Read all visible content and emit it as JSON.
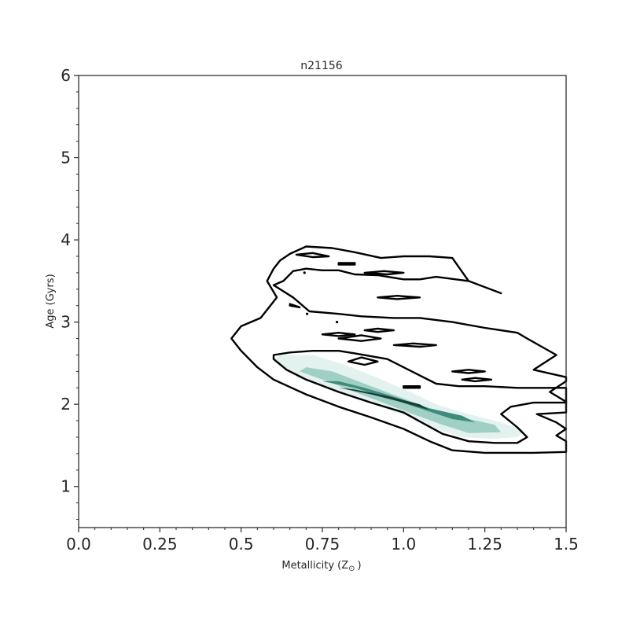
{
  "chart_data": {
    "type": "contour",
    "title": "n21156",
    "xlabel": "Metallicity (Z",
    "xlabel_sub": "⊙",
    "xlabel_close": ")",
    "ylabel": "Age (Gyrs)",
    "xlim": [
      0.0,
      1.5
    ],
    "ylim": [
      0.5,
      6.0
    ],
    "xticks": [
      0.0,
      0.25,
      0.5,
      0.75,
      1.0,
      1.25,
      1.5
    ],
    "xtick_labels": [
      "0.0",
      "0.25",
      "0.5",
      "0.75",
      "1.0",
      "1.25",
      "1.5"
    ],
    "yticks": [
      1,
      2,
      3,
      4,
      5,
      6
    ],
    "ytick_labels": [
      "1",
      "2",
      "3",
      "4",
      "5",
      "6"
    ],
    "colors": {
      "contour_line": "#000000",
      "fill_light": "#e3f1ef",
      "fill_mid": "#9fcfc5",
      "fill_dark": "#3e8a7c",
      "fill_core": "#173f37",
      "axis": "#262626"
    },
    "line_contours": [
      {
        "name": "outer-contour",
        "points": [
          [
            0.47,
            2.8
          ],
          [
            0.5,
            2.65
          ],
          [
            0.55,
            2.45
          ],
          [
            0.6,
            2.3
          ],
          [
            0.7,
            2.12
          ],
          [
            0.8,
            1.97
          ],
          [
            0.9,
            1.84
          ],
          [
            1.0,
            1.7
          ],
          [
            1.08,
            1.55
          ],
          [
            1.15,
            1.44
          ],
          [
            1.25,
            1.41
          ],
          [
            1.4,
            1.41
          ],
          [
            1.5,
            1.42
          ],
          [
            1.5,
            1.55
          ],
          [
            1.47,
            1.62
          ],
          [
            1.5,
            1.7
          ],
          [
            1.47,
            1.78
          ],
          [
            1.41,
            1.88
          ],
          [
            1.5,
            1.9
          ],
          [
            1.5,
            2.03
          ],
          [
            1.45,
            2.15
          ],
          [
            1.5,
            2.28
          ],
          [
            1.5,
            2.33
          ],
          [
            1.4,
            2.42
          ],
          [
            1.47,
            2.6
          ],
          [
            1.38,
            2.8
          ],
          [
            1.35,
            2.87
          ],
          [
            1.25,
            2.93
          ],
          [
            1.15,
            3.0
          ],
          [
            1.05,
            3.05
          ],
          [
            0.97,
            3.05
          ],
          [
            0.87,
            3.07
          ],
          [
            0.8,
            3.1
          ],
          [
            0.71,
            3.13
          ],
          [
            0.66,
            3.3
          ],
          [
            0.6,
            3.45
          ],
          [
            0.63,
            3.5
          ],
          [
            0.66,
            3.62
          ],
          [
            0.7,
            3.65
          ],
          [
            0.75,
            3.63
          ],
          [
            0.8,
            3.63
          ],
          [
            0.85,
            3.58
          ],
          [
            0.92,
            3.57
          ],
          [
            1.0,
            3.52
          ],
          [
            1.05,
            3.52
          ],
          [
            1.1,
            3.55
          ],
          [
            1.2,
            3.5
          ],
          [
            1.3,
            3.35
          ],
          [
            1.3,
            3.35
          ],
          [
            1.2,
            3.5
          ],
          [
            1.15,
            3.78
          ],
          [
            1.08,
            3.8
          ],
          [
            1.0,
            3.8
          ],
          [
            0.93,
            3.78
          ],
          [
            0.85,
            3.85
          ],
          [
            0.78,
            3.9
          ],
          [
            0.7,
            3.92
          ],
          [
            0.65,
            3.83
          ],
          [
            0.62,
            3.75
          ],
          [
            0.6,
            3.65
          ],
          [
            0.58,
            3.5
          ],
          [
            0.61,
            3.3
          ],
          [
            0.6,
            3.25
          ],
          [
            0.58,
            3.15
          ],
          [
            0.56,
            3.05
          ],
          [
            0.5,
            2.95
          ],
          [
            0.47,
            2.8
          ]
        ]
      },
      {
        "name": "inner-contour",
        "points": [
          [
            0.6,
            2.55
          ],
          [
            0.64,
            2.42
          ],
          [
            0.7,
            2.3
          ],
          [
            0.8,
            2.15
          ],
          [
            0.9,
            2.02
          ],
          [
            1.0,
            1.9
          ],
          [
            1.05,
            1.79
          ],
          [
            1.12,
            1.64
          ],
          [
            1.2,
            1.55
          ],
          [
            1.28,
            1.53
          ],
          [
            1.35,
            1.53
          ],
          [
            1.38,
            1.6
          ],
          [
            1.35,
            1.72
          ],
          [
            1.3,
            1.88
          ],
          [
            1.33,
            1.97
          ],
          [
            1.4,
            2.02
          ],
          [
            1.5,
            2.02
          ],
          [
            1.5,
            2.2
          ],
          [
            1.45,
            2.2
          ],
          [
            1.35,
            2.2
          ],
          [
            1.25,
            2.22
          ],
          [
            1.17,
            2.22
          ],
          [
            1.1,
            2.25
          ],
          [
            1.05,
            2.35
          ],
          [
            0.95,
            2.55
          ],
          [
            0.85,
            2.62
          ],
          [
            0.8,
            2.65
          ],
          [
            0.72,
            2.65
          ],
          [
            0.65,
            2.63
          ],
          [
            0.6,
            2.6
          ],
          [
            0.6,
            2.55
          ]
        ]
      },
      {
        "name": "island-1",
        "points": [
          [
            0.67,
            3.82
          ],
          [
            0.72,
            3.79
          ],
          [
            0.77,
            3.8
          ],
          [
            0.72,
            3.84
          ],
          [
            0.67,
            3.82
          ]
        ]
      },
      {
        "name": "island-2",
        "points": [
          [
            0.8,
            3.7
          ],
          [
            0.85,
            3.7
          ],
          [
            0.85,
            3.72
          ],
          [
            0.8,
            3.72
          ],
          [
            0.8,
            3.7
          ]
        ]
      },
      {
        "name": "island-3",
        "points": [
          [
            0.88,
            3.6
          ],
          [
            0.95,
            3.58
          ],
          [
            1.0,
            3.6
          ],
          [
            0.94,
            3.62
          ],
          [
            0.88,
            3.6
          ]
        ]
      },
      {
        "name": "island-4",
        "points": [
          [
            0.92,
            3.3
          ],
          [
            0.98,
            3.28
          ],
          [
            1.05,
            3.3
          ],
          [
            0.98,
            3.32
          ],
          [
            0.92,
            3.3
          ]
        ]
      },
      {
        "name": "island-5",
        "points": [
          [
            0.65,
            3.2
          ],
          [
            0.68,
            3.18
          ],
          [
            0.65,
            3.22
          ],
          [
            0.65,
            3.2
          ]
        ]
      },
      {
        "name": "island-6",
        "points": [
          [
            0.75,
            2.85
          ],
          [
            0.8,
            2.83
          ],
          [
            0.85,
            2.85
          ],
          [
            0.8,
            2.87
          ],
          [
            0.75,
            2.85
          ]
        ]
      },
      {
        "name": "island-7",
        "points": [
          [
            0.8,
            2.8
          ],
          [
            0.87,
            2.77
          ],
          [
            0.93,
            2.8
          ],
          [
            0.87,
            2.84
          ],
          [
            0.8,
            2.8
          ]
        ]
      },
      {
        "name": "island-8",
        "points": [
          [
            0.88,
            2.9
          ],
          [
            0.92,
            2.88
          ],
          [
            0.97,
            2.9
          ],
          [
            0.92,
            2.92
          ],
          [
            0.88,
            2.9
          ]
        ]
      },
      {
        "name": "island-9",
        "points": [
          [
            0.97,
            2.72
          ],
          [
            1.05,
            2.7
          ],
          [
            1.1,
            2.72
          ],
          [
            1.03,
            2.74
          ],
          [
            0.97,
            2.72
          ]
        ]
      },
      {
        "name": "island-10",
        "points": [
          [
            0.83,
            2.52
          ],
          [
            0.88,
            2.48
          ],
          [
            0.92,
            2.52
          ],
          [
            0.87,
            2.57
          ],
          [
            0.83,
            2.52
          ]
        ]
      },
      {
        "name": "island-11",
        "points": [
          [
            1.15,
            2.4
          ],
          [
            1.2,
            2.38
          ],
          [
            1.25,
            2.4
          ],
          [
            1.2,
            2.42
          ],
          [
            1.15,
            2.4
          ]
        ]
      },
      {
        "name": "island-12",
        "points": [
          [
            1.18,
            2.3
          ],
          [
            1.22,
            2.28
          ],
          [
            1.27,
            2.3
          ],
          [
            1.22,
            2.32
          ],
          [
            1.18,
            2.3
          ]
        ]
      },
      {
        "name": "island-13",
        "points": [
          [
            1.0,
            2.2
          ],
          [
            1.05,
            2.2
          ],
          [
            1.05,
            2.22
          ],
          [
            1.0,
            2.22
          ],
          [
            1.0,
            2.2
          ]
        ]
      }
    ],
    "dots": [
      [
        0.695,
        3.6
      ],
      [
        0.703,
        3.1
      ],
      [
        0.795,
        3.0
      ]
    ],
    "filled_levels": [
      {
        "name": "density-level-1",
        "color_key": "fill_light",
        "points": [
          [
            0.6,
            2.52
          ],
          [
            0.65,
            2.4
          ],
          [
            0.72,
            2.28
          ],
          [
            0.82,
            2.12
          ],
          [
            0.92,
            1.98
          ],
          [
            1.02,
            1.84
          ],
          [
            1.1,
            1.7
          ],
          [
            1.18,
            1.6
          ],
          [
            1.27,
            1.58
          ],
          [
            1.35,
            1.6
          ],
          [
            1.37,
            1.68
          ],
          [
            1.3,
            1.78
          ],
          [
            1.2,
            1.88
          ],
          [
            1.1,
            2.0
          ],
          [
            1.02,
            2.15
          ],
          [
            0.92,
            2.32
          ],
          [
            0.82,
            2.48
          ],
          [
            0.72,
            2.6
          ],
          [
            0.62,
            2.6
          ],
          [
            0.6,
            2.52
          ]
        ]
      },
      {
        "name": "density-level-2",
        "color_key": "fill_mid",
        "points": [
          [
            0.68,
            2.4
          ],
          [
            0.75,
            2.3
          ],
          [
            0.85,
            2.15
          ],
          [
            0.95,
            2.0
          ],
          [
            1.03,
            1.88
          ],
          [
            1.12,
            1.75
          ],
          [
            1.2,
            1.65
          ],
          [
            1.3,
            1.66
          ],
          [
            1.28,
            1.75
          ],
          [
            1.18,
            1.84
          ],
          [
            1.08,
            1.95
          ],
          [
            0.98,
            2.1
          ],
          [
            0.88,
            2.25
          ],
          [
            0.78,
            2.4
          ],
          [
            0.7,
            2.45
          ],
          [
            0.68,
            2.4
          ]
        ]
      },
      {
        "name": "density-level-3",
        "color_key": "fill_dark",
        "points": [
          [
            0.75,
            2.28
          ],
          [
            0.85,
            2.2
          ],
          [
            0.95,
            2.08
          ],
          [
            1.05,
            1.95
          ],
          [
            1.15,
            1.82
          ],
          [
            1.22,
            1.78
          ],
          [
            1.18,
            1.86
          ],
          [
            1.08,
            1.95
          ],
          [
            0.98,
            2.08
          ],
          [
            0.88,
            2.2
          ],
          [
            0.8,
            2.28
          ],
          [
            0.75,
            2.28
          ]
        ]
      },
      {
        "name": "density-level-4",
        "color_key": "fill_core",
        "points": [
          [
            0.8,
            2.2
          ],
          [
            0.9,
            2.12
          ],
          [
            1.0,
            2.02
          ],
          [
            1.08,
            1.93
          ],
          [
            1.05,
            2.0
          ],
          [
            0.95,
            2.1
          ],
          [
            0.85,
            2.18
          ],
          [
            0.8,
            2.2
          ]
        ]
      }
    ]
  }
}
